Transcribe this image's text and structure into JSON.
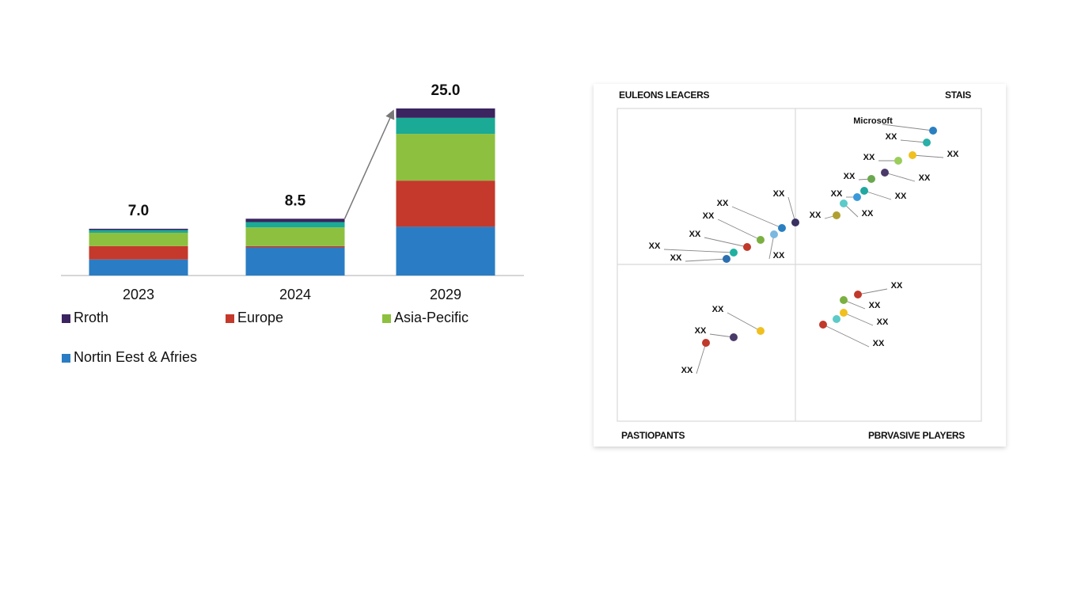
{
  "chart_data": [
    {
      "type": "bar",
      "stacked": true,
      "categories": [
        "2023",
        "2024",
        "2029"
      ],
      "series": [
        {
          "name": "Nortin Eest & Afries",
          "color": "#2a7dc4",
          "values": [
            2.4,
            4.2,
            7.3
          ]
        },
        {
          "name": "Europe",
          "color": "#c4392b",
          "values": [
            2.0,
            0.2,
            6.9
          ]
        },
        {
          "name": "Asia-Pecific",
          "color": "#8dc03f",
          "values": [
            2.0,
            2.8,
            7.0
          ]
        },
        {
          "name": null,
          "color": "#1aaa96",
          "values": [
            0.4,
            0.8,
            2.4
          ]
        },
        {
          "name": "Rroth",
          "color": "#3b2460",
          "values": [
            0.2,
            0.5,
            1.4
          ]
        }
      ],
      "totals": [
        7,
        8.5,
        25
      ],
      "total_labels": [
        "7.0",
        "8.5",
        "25.0"
      ]
    },
    {
      "type": "quadrant",
      "quadrants": [
        "EULEONS LEACERS",
        "STAIS",
        "PASTIOPANTS",
        "PBRVASIVE PLAYERS"
      ],
      "points": [
        {
          "label": "Microsoft",
          "color": "#2a7fc1"
        },
        {
          "label": "XX",
          "color": "#2ab0a8"
        },
        {
          "label": "XX",
          "color": "#9acd5a"
        },
        {
          "label": "XX",
          "color": "#f0c020"
        },
        {
          "label": "XX",
          "color": "#6aa84f"
        },
        {
          "label": "XX",
          "color": "#4a3a6a"
        },
        {
          "label": "XX",
          "color": "#3a9ad9"
        },
        {
          "label": "XX",
          "color": "#22a8a0"
        },
        {
          "label": "XX",
          "color": "#b0a030"
        },
        {
          "label": "XX",
          "color": "#5ccac8"
        },
        {
          "label": "XX",
          "color": "#3a3060"
        },
        {
          "label": "XX",
          "color": "#2a7fc1"
        },
        {
          "label": "XX",
          "color": "#7ab8e0"
        },
        {
          "label": "XX",
          "color": "#7ab040"
        },
        {
          "label": "XX",
          "color": "#c0392b"
        },
        {
          "label": "XX",
          "color": "#20b0a0"
        },
        {
          "label": "XX",
          "color": "#2a6fb0"
        },
        {
          "label": "XX",
          "color": "#f0c020"
        },
        {
          "label": "XX",
          "color": "#4a3a6a"
        },
        {
          "label": "XX",
          "color": "#c0392b"
        },
        {
          "label": "XX",
          "color": "#c0392b"
        },
        {
          "label": "XX",
          "color": "#7ab040"
        },
        {
          "label": "XX",
          "color": "#f0c020"
        },
        {
          "label": null,
          "color": "#5ccac8"
        },
        {
          "label": "XX",
          "color": "#c0392b"
        }
      ]
    }
  ]
}
